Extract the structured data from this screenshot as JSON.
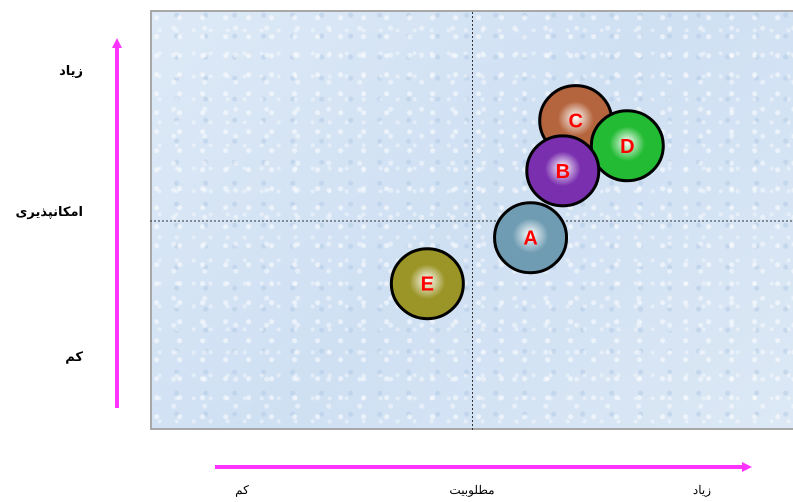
{
  "chart_data": {
    "type": "scatter",
    "title": "",
    "xlabel": "مطلوبیت",
    "ylabel": "امکانپذیری",
    "x_tick_labels": {
      "low": "کم",
      "high": "زیاد"
    },
    "y_tick_labels": {
      "low": "کم",
      "high": "زیاد"
    },
    "xlim": [
      0,
      10
    ],
    "ylim": [
      0,
      10
    ],
    "grid": false,
    "quadrant_lines": {
      "x": 5,
      "y": 5
    },
    "points": [
      {
        "label": "C",
        "x": 6.6,
        "y": 7.4,
        "color": "#b5653e",
        "text_color": "#ff0000"
      },
      {
        "label": "D",
        "x": 7.4,
        "y": 6.8,
        "color": "#22bb33",
        "text_color": "#ff0000"
      },
      {
        "label": "B",
        "x": 6.4,
        "y": 6.2,
        "color": "#7a2fae",
        "text_color": "#ff0000"
      },
      {
        "label": "A",
        "x": 5.9,
        "y": 4.6,
        "color": "#6f9cb3",
        "text_color": "#ff0000"
      },
      {
        "label": "E",
        "x": 4.3,
        "y": 3.5,
        "color": "#9b9528",
        "text_color": "#ff0000"
      }
    ]
  },
  "colors": {
    "axis_arrow": "#ff33ff",
    "plot_background": "#d9e8f7",
    "divider": "#333333",
    "bubble_outline": "#000000"
  }
}
